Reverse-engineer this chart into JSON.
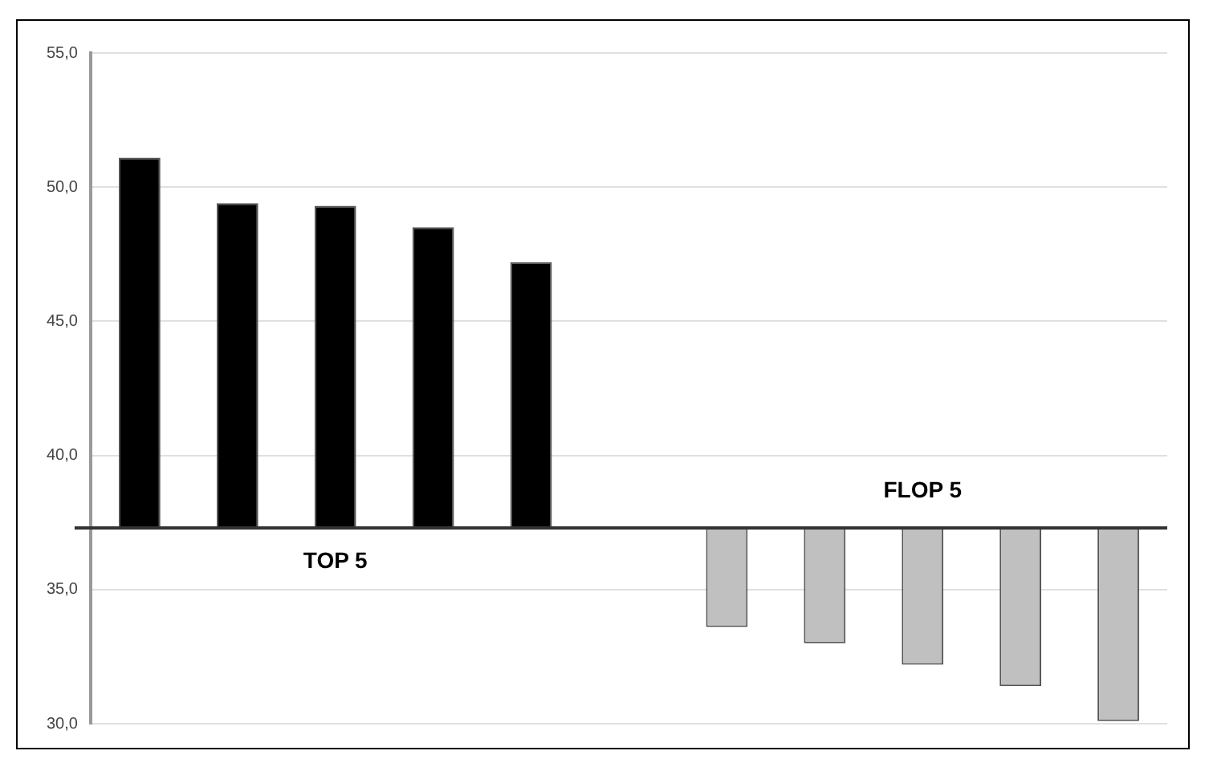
{
  "chart_data": {
    "type": "bar",
    "categories": [
      null,
      null,
      null,
      null,
      null,
      null,
      null,
      null,
      null,
      null,
      null
    ],
    "base": [
      37.3,
      37.3,
      37.3,
      37.3,
      37.3,
      null,
      37.3,
      37.3,
      37.3,
      37.3,
      37.3
    ],
    "values": [
      13.8,
      12.1,
      12.0,
      11.2,
      9.9,
      null,
      -3.7,
      -4.3,
      -5.1,
      -5.9,
      -7.2
    ],
    "colors": [
      "#000000",
      "#000000",
      "#000000",
      "#000000",
      "#000000",
      "#000000",
      "#c0c0c0",
      "#c0c0c0",
      "#c0c0c0",
      "#c0c0c0",
      "#c0c0c0"
    ],
    "ylim": [
      30,
      55
    ],
    "yticks": [
      {
        "value": 30,
        "label": "30,0"
      },
      {
        "value": 35,
        "label": "35,0"
      },
      {
        "value": 40,
        "label": "40,0"
      },
      {
        "value": 45,
        "label": "45,0"
      },
      {
        "value": 50,
        "label": "50,0"
      },
      {
        "value": 55,
        "label": "55,0"
      }
    ],
    "ref_lines": [
      {
        "axis": "y",
        "value": 37.3,
        "color": "#333333"
      }
    ],
    "annotations": [
      "TOP 5",
      "FLOP 5"
    ],
    "grid": "y",
    "tick_labels": "y",
    "legend": false
  }
}
